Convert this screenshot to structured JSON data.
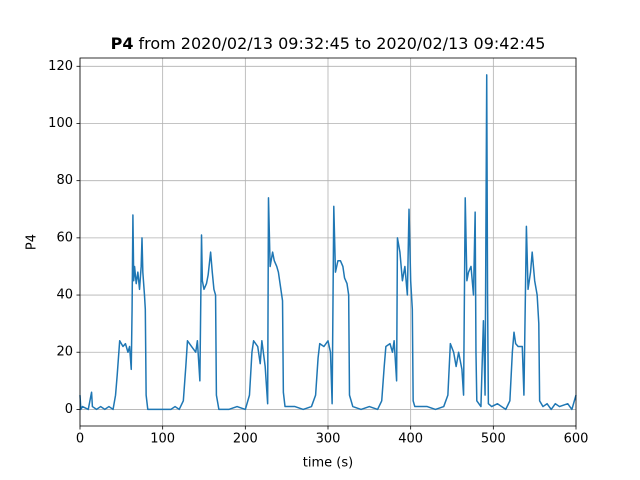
{
  "chart_data": {
    "type": "line",
    "title_name": "P4",
    "title": "from 2020/02/13 09:32:45 to 2020/02/13 09:42:45",
    "xlabel": "time (s)",
    "ylabel": "P4",
    "color": "#1f77b4",
    "grid": true,
    "xlim": [
      0,
      600
    ],
    "ylim": [
      -5.8,
      122.9
    ],
    "xticks": [
      0,
      100,
      200,
      300,
      400,
      500,
      600
    ],
    "yticks": [
      0,
      20,
      40,
      60,
      80,
      100,
      120
    ],
    "x": [
      0,
      1,
      3,
      10,
      14,
      15,
      20,
      25,
      30,
      35,
      40,
      43,
      45,
      48,
      52,
      55,
      58,
      60,
      62,
      63,
      64,
      65,
      66,
      68,
      70,
      72,
      74,
      75,
      76,
      78,
      79,
      80,
      82,
      90,
      100,
      110,
      115,
      120,
      125,
      128,
      130,
      135,
      140,
      142,
      145,
      147,
      148,
      150,
      153,
      155,
      158,
      160,
      162,
      164,
      165,
      168,
      180,
      190,
      200,
      205,
      208,
      210,
      215,
      218,
      220,
      224,
      227,
      228,
      230,
      233,
      235,
      238,
      240,
      242,
      245,
      246,
      248,
      260,
      270,
      280,
      285,
      288,
      290,
      295,
      300,
      303,
      305,
      307,
      309,
      312,
      315,
      318,
      320,
      323,
      325,
      326,
      330,
      340,
      350,
      360,
      365,
      368,
      370,
      375,
      378,
      380,
      383,
      384,
      387,
      390,
      393,
      396,
      398,
      400,
      402,
      403,
      405,
      420,
      430,
      440,
      445,
      448,
      452,
      455,
      458,
      462,
      464,
      466,
      468,
      470,
      473,
      476,
      478,
      479,
      480,
      485,
      488,
      490,
      492,
      493,
      494,
      498,
      505,
      510,
      515,
      520,
      523,
      525,
      527,
      530,
      535,
      537,
      540,
      542,
      545,
      547,
      550,
      553,
      555,
      556,
      560,
      565,
      570,
      575,
      580,
      590,
      595,
      600
    ],
    "values": [
      5,
      0,
      1,
      0,
      6,
      1,
      0,
      1,
      0,
      1,
      0,
      5,
      12,
      24,
      22,
      23,
      20,
      22,
      14,
      35,
      68,
      45,
      50,
      44,
      48,
      42,
      50,
      60,
      48,
      40,
      35,
      5,
      0,
      0,
      0,
      0,
      1,
      0,
      3,
      15,
      24,
      22,
      20,
      24,
      10,
      61,
      45,
      42,
      44,
      47,
      55,
      48,
      42,
      40,
      5,
      0,
      0,
      1,
      0,
      5,
      20,
      24,
      22,
      16,
      24,
      15,
      2,
      74,
      50,
      55,
      52,
      50,
      48,
      44,
      38,
      6,
      1,
      1,
      0,
      1,
      5,
      18,
      23,
      22,
      24,
      20,
      2,
      71,
      48,
      52,
      52,
      50,
      46,
      44,
      40,
      5,
      1,
      0,
      1,
      0,
      3,
      15,
      22,
      23,
      20,
      24,
      10,
      60,
      55,
      45,
      50,
      40,
      70,
      45,
      35,
      3,
      1,
      1,
      0,
      1,
      5,
      23,
      20,
      15,
      20,
      14,
      5,
      74,
      45,
      48,
      50,
      40,
      69,
      20,
      3,
      1,
      31,
      5,
      117,
      40,
      2,
      1,
      2,
      1,
      0,
      3,
      20,
      27,
      23,
      22,
      22,
      5,
      64,
      42,
      48,
      55,
      45,
      40,
      30,
      3,
      1,
      2,
      0,
      2,
      1,
      2,
      0,
      5
    ]
  }
}
